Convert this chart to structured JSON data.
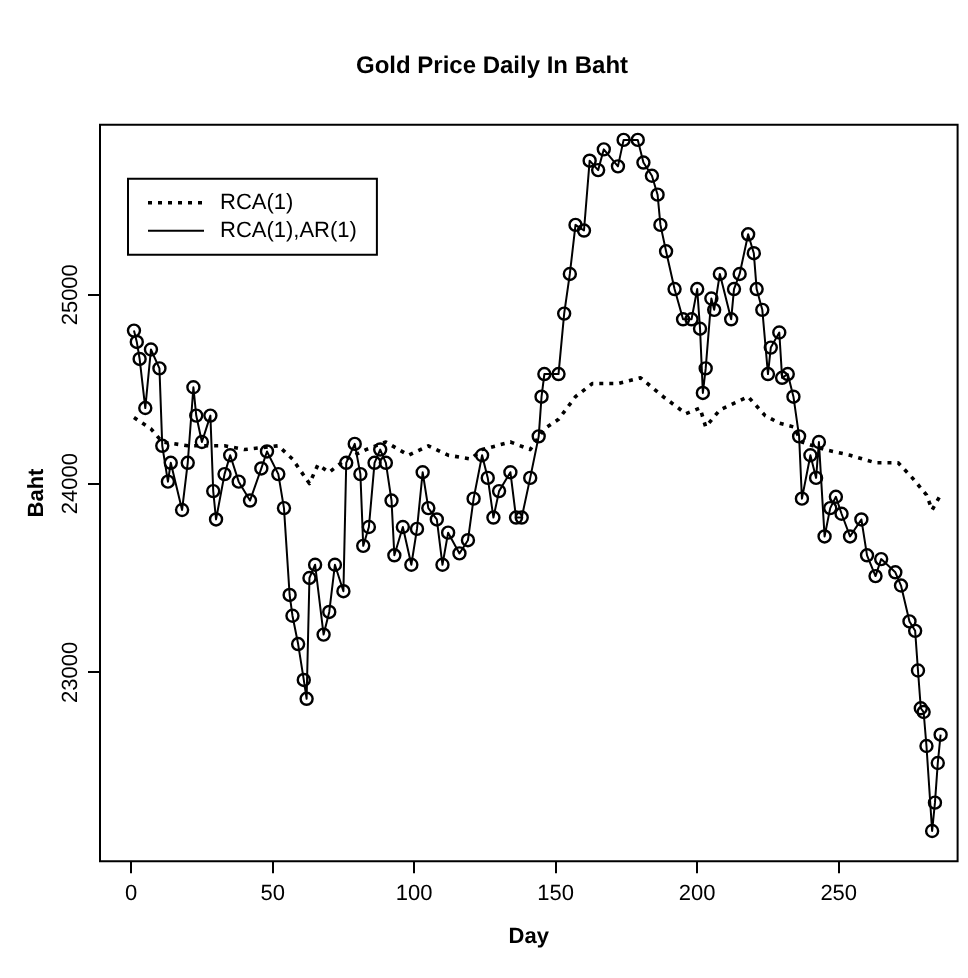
{
  "chart_data": {
    "type": "line",
    "title": "Gold Price Daily In Baht",
    "xlabel": "Day",
    "ylabel": "Baht",
    "xlim": [
      -11,
      292
    ],
    "ylim": [
      22000,
      25900
    ],
    "xticks": [
      0,
      50,
      100,
      150,
      200,
      250
    ],
    "yticks": [
      23000,
      24000,
      25000
    ],
    "grid": false,
    "legend": "top left",
    "series": [
      {
        "name": "RCA(1)",
        "color": "#000000",
        "line_style": "dotted",
        "marker": "none",
        "x": [
          1,
          7,
          11,
          20,
          33,
          40,
          52,
          57,
          63,
          66,
          70,
          76,
          83,
          90,
          98,
          105,
          112,
          120,
          124,
          134,
          141,
          146,
          151,
          157,
          163,
          172,
          180,
          188,
          196,
          201,
          203,
          208,
          218,
          224,
          229,
          234,
          237,
          245,
          254,
          263,
          271,
          276,
          281,
          283,
          286
        ],
        "values": [
          24350,
          24290,
          24220,
          24200,
          24200,
          24180,
          24200,
          24130,
          24000,
          24100,
          24060,
          24130,
          24180,
          24220,
          24150,
          24200,
          24150,
          24130,
          24180,
          24220,
          24180,
          24290,
          24340,
          24460,
          24530,
          24530,
          24560,
          24460,
          24370,
          24400,
          24300,
          24390,
          24460,
          24360,
          24320,
          24300,
          24220,
          24180,
          24150,
          24110,
          24110,
          24030,
          23940,
          23860,
          23940
        ]
      },
      {
        "name": "RCA(1),AR(1)",
        "color": "#000000",
        "line_style": "solid",
        "marker": "circle",
        "x": [
          1,
          2,
          3,
          5,
          7,
          10,
          11,
          13,
          14,
          18,
          20,
          22,
          23,
          25,
          28,
          29,
          30,
          33,
          35,
          38,
          42,
          46,
          48,
          52,
          54,
          56,
          57,
          59,
          61,
          62,
          63,
          65,
          68,
          70,
          72,
          75,
          76,
          79,
          81,
          82,
          84,
          86,
          88,
          90,
          92,
          93,
          96,
          99,
          101,
          103,
          105,
          108,
          110,
          112,
          116,
          119,
          121,
          124,
          126,
          128,
          130,
          134,
          136,
          138,
          141,
          144,
          145,
          146,
          151,
          153,
          155,
          157,
          160,
          162,
          165,
          167,
          172,
          174,
          179,
          181,
          184,
          186,
          187,
          189,
          192,
          195,
          198,
          200,
          201,
          202,
          203,
          205,
          206,
          208,
          212,
          213,
          215,
          218,
          220,
          221,
          223,
          225,
          226,
          229,
          230,
          232,
          234,
          236,
          237,
          240,
          242,
          243,
          245,
          247,
          249,
          251,
          254,
          258,
          260,
          263,
          265,
          270,
          272,
          275,
          277,
          278,
          279,
          280,
          281,
          283,
          284,
          285,
          286
        ],
        "values": [
          24810,
          24750,
          24660,
          24400,
          24710,
          24610,
          24200,
          24010,
          24110,
          23860,
          24110,
          24510,
          24360,
          24220,
          24360,
          23960,
          23810,
          24050,
          24150,
          24010,
          23910,
          24080,
          24170,
          24050,
          23870,
          23410,
          23300,
          23150,
          22960,
          22860,
          23500,
          23570,
          23200,
          23320,
          23570,
          23430,
          24110,
          24210,
          24050,
          23670,
          23770,
          24110,
          24180,
          24110,
          23910,
          23620,
          23770,
          23570,
          23760,
          24060,
          23870,
          23810,
          23570,
          23740,
          23630,
          23700,
          23920,
          24150,
          24030,
          23820,
          23960,
          24060,
          23820,
          23820,
          24030,
          24250,
          24460,
          24580,
          24580,
          24900,
          25110,
          25370,
          25340,
          25710,
          25660,
          25770,
          25680,
          25820,
          25820,
          25700,
          25630,
          25530,
          25370,
          25230,
          25030,
          24870,
          24870,
          25030,
          24820,
          24480,
          24610,
          24980,
          24920,
          25110,
          24870,
          25030,
          25110,
          25320,
          25220,
          25030,
          24920,
          24580,
          24720,
          24800,
          24560,
          24580,
          24460,
          24250,
          23920,
          24150,
          24030,
          24220,
          23720,
          23870,
          23930,
          23840,
          23720,
          23810,
          23620,
          23510,
          23600,
          23530,
          23460,
          23270,
          23220,
          23010,
          22810,
          22790,
          22610,
          22160,
          22310,
          22520,
          22670
        ]
      }
    ]
  }
}
